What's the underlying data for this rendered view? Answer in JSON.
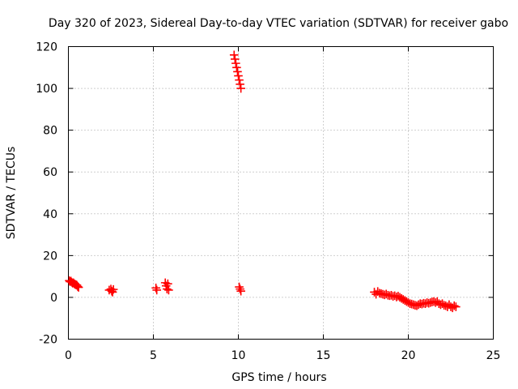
{
  "chart_data": {
    "type": "scatter",
    "title": "Day 320 of 2023, Sidereal Day-to-day VTEC variation (SDTVAR) for receiver gabo",
    "xlabel": "GPS time / hours",
    "ylabel": "SDTVAR / TECUs",
    "xlim": [
      0,
      25
    ],
    "ylim": [
      -20,
      120
    ],
    "xticks": [
      0,
      5,
      10,
      15,
      20,
      25
    ],
    "yticks": [
      -20,
      0,
      20,
      40,
      60,
      80,
      100,
      120
    ],
    "xtick_labels": [
      "0",
      "5",
      "10",
      "15",
      "20",
      "25"
    ],
    "ytick_labels": [
      "-20",
      "0",
      "20",
      "40",
      "60",
      "80",
      "100",
      "120"
    ],
    "grid": true,
    "marker": "+",
    "series": [
      {
        "name": "SDTVAR",
        "color": "#ff0000",
        "points": [
          [
            0.05,
            8.0
          ],
          [
            0.1,
            7.5
          ],
          [
            0.15,
            7.8
          ],
          [
            0.2,
            7.2
          ],
          [
            0.25,
            6.8
          ],
          [
            0.3,
            7.0
          ],
          [
            0.35,
            6.5
          ],
          [
            0.4,
            6.2
          ],
          [
            0.45,
            6.0
          ],
          [
            0.5,
            5.8
          ],
          [
            0.55,
            5.2
          ],
          [
            0.6,
            4.8
          ],
          [
            2.4,
            3.5
          ],
          [
            2.5,
            4.0
          ],
          [
            2.55,
            3.0
          ],
          [
            2.6,
            2.5
          ],
          [
            2.65,
            3.8
          ],
          [
            5.15,
            4.5
          ],
          [
            5.2,
            3.5
          ],
          [
            5.7,
            7.0
          ],
          [
            5.75,
            5.5
          ],
          [
            5.8,
            4.0
          ],
          [
            5.85,
            6.5
          ],
          [
            5.9,
            3.5
          ],
          [
            9.75,
            116.0
          ],
          [
            9.8,
            114.0
          ],
          [
            9.85,
            112.0
          ],
          [
            9.9,
            110.0
          ],
          [
            9.95,
            108.0
          ],
          [
            10.0,
            106.0
          ],
          [
            10.05,
            104.0
          ],
          [
            10.1,
            102.0
          ],
          [
            10.15,
            100.0
          ],
          [
            10.05,
            5.0
          ],
          [
            10.1,
            4.0
          ],
          [
            10.15,
            3.0
          ],
          [
            18.0,
            2.5
          ],
          [
            18.1,
            1.5
          ],
          [
            18.2,
            2.8
          ],
          [
            18.3,
            2.0
          ],
          [
            18.4,
            1.8
          ],
          [
            18.5,
            1.5
          ],
          [
            18.6,
            1.2
          ],
          [
            18.7,
            1.6
          ],
          [
            18.8,
            1.0
          ],
          [
            18.9,
            0.8
          ],
          [
            19.0,
            1.0
          ],
          [
            19.1,
            0.5
          ],
          [
            19.2,
            0.8
          ],
          [
            19.3,
            0.2
          ],
          [
            19.4,
            0.6
          ],
          [
            19.5,
            0.0
          ],
          [
            19.6,
            -0.5
          ],
          [
            19.7,
            -1.0
          ],
          [
            19.8,
            -1.5
          ],
          [
            19.9,
            -2.0
          ],
          [
            20.0,
            -2.5
          ],
          [
            20.1,
            -3.0
          ],
          [
            20.2,
            -3.2
          ],
          [
            20.3,
            -3.5
          ],
          [
            20.4,
            -3.8
          ],
          [
            20.5,
            -4.0
          ],
          [
            20.6,
            -3.5
          ],
          [
            20.7,
            -3.0
          ],
          [
            20.8,
            -3.2
          ],
          [
            20.9,
            -2.8
          ],
          [
            21.0,
            -3.0
          ],
          [
            21.1,
            -2.5
          ],
          [
            21.2,
            -2.8
          ],
          [
            21.3,
            -2.5
          ],
          [
            21.4,
            -2.2
          ],
          [
            21.5,
            -2.0
          ],
          [
            21.6,
            -2.5
          ],
          [
            21.7,
            -2.0
          ],
          [
            21.8,
            -3.0
          ],
          [
            21.9,
            -3.5
          ],
          [
            22.0,
            -3.0
          ],
          [
            22.1,
            -3.8
          ],
          [
            22.2,
            -4.0
          ],
          [
            22.3,
            -4.5
          ],
          [
            22.4,
            -3.5
          ],
          [
            22.5,
            -4.5
          ],
          [
            22.6,
            -5.0
          ],
          [
            22.7,
            -4.0
          ],
          [
            22.8,
            -4.5
          ]
        ]
      }
    ]
  }
}
